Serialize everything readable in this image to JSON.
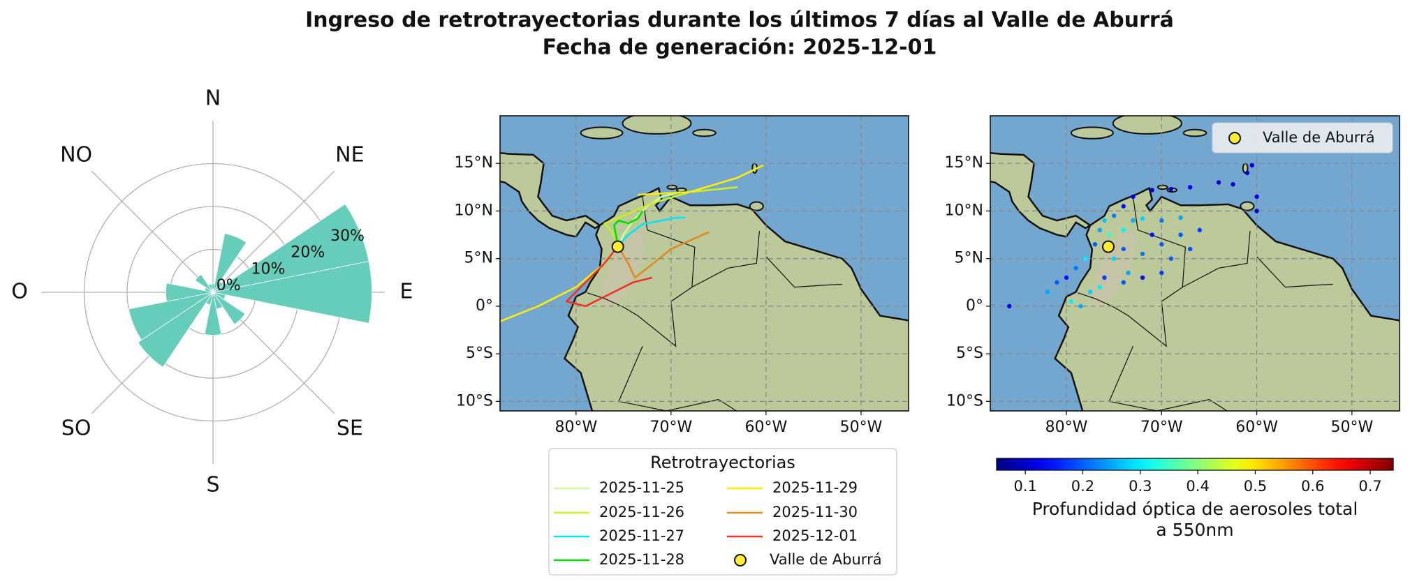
{
  "title": [
    "Ingreso de retrotrayectorias durante los últimos 7 días al Valle de Aburrá",
    "Fecha de generación: 2025-12-01"
  ],
  "chart_data": [
    {
      "type": "polar_bar",
      "color": "#66cdbb",
      "direction_labels": [
        "N",
        "NE",
        "E",
        "SE",
        "S",
        "SO",
        "O",
        "NO"
      ],
      "theta": [
        0,
        22.5,
        45,
        67.5,
        90,
        112.5,
        135,
        157.5,
        180,
        202.5,
        225,
        247.5,
        270,
        292.5,
        315,
        337.5
      ],
      "values": [
        2,
        14,
        3,
        37,
        37,
        3,
        9,
        4,
        10,
        3,
        21,
        20,
        11,
        2,
        5,
        2
      ],
      "rlim": [
        0,
        40
      ],
      "rticks": [
        {
          "value": 0,
          "label": "0%"
        },
        {
          "value": 10,
          "label": "10%"
        },
        {
          "value": 20,
          "label": "20%"
        },
        {
          "value": 30,
          "label": "30%"
        }
      ]
    },
    {
      "type": "trajectory_map",
      "xlim": [
        -88,
        -45
      ],
      "ylim": [
        -11,
        20
      ],
      "xticks": [
        {
          "value": -80,
          "label": "80°W"
        },
        {
          "value": -70,
          "label": "70°W"
        },
        {
          "value": -60,
          "label": "60°W"
        },
        {
          "value": -50,
          "label": "50°W"
        }
      ],
      "yticks": [
        {
          "value": -10,
          "label": "10°S"
        },
        {
          "value": -5,
          "label": "5°S"
        },
        {
          "value": 0,
          "label": "0°"
        },
        {
          "value": 5,
          "label": "5°N"
        },
        {
          "value": 10,
          "label": "10°N"
        },
        {
          "value": 15,
          "label": "15°N"
        }
      ],
      "grid": true,
      "legend_title": "Retrotrayectorias",
      "series": [
        {
          "name": "2025-11-25",
          "color": "#ccff99",
          "x": [
            -75.6,
            -75,
            -74,
            -72.5,
            -71,
            -69
          ],
          "y": [
            6.3,
            7.5,
            9,
            10.5,
            11.5,
            12
          ]
        },
        {
          "name": "2025-11-26",
          "color": "#ccee22",
          "x": [
            -75.6,
            -76,
            -77,
            -75,
            -72,
            -68,
            -65,
            -63
          ],
          "y": [
            6.3,
            7.5,
            8.7,
            9.5,
            10.8,
            12,
            12.3,
            12.5
          ]
        },
        {
          "name": "2025-11-27",
          "color": "#00e5ff",
          "x": [
            -75.6,
            -74.5,
            -73,
            -71,
            -69.5,
            -68.5
          ],
          "y": [
            6.3,
            7.5,
            8.6,
            9,
            9.3,
            9.3
          ]
        },
        {
          "name": "2025-11-28",
          "color": "#00dd00",
          "x": [
            -75.6,
            -75.8,
            -76,
            -75.5,
            -74.5,
            -73.5,
            -73
          ],
          "y": [
            6.3,
            7.5,
            8.5,
            9,
            8.7,
            9.2,
            10
          ]
        },
        {
          "name": "2025-11-29",
          "color": "#ffee00",
          "x": [
            -75.6,
            -77,
            -80,
            -84,
            -88,
            null,
            -73.5,
            -68,
            -63,
            -60.3
          ],
          "y": [
            6.3,
            4.5,
            2,
            0,
            -1.6,
            null,
            11.7,
            12,
            13.5,
            14.8
          ]
        },
        {
          "name": "2025-11-30",
          "color": "#e08a1e",
          "x": [
            -75.6,
            -74.5,
            -73.8,
            -72.5,
            -70,
            -66
          ],
          "y": [
            6.3,
            4.5,
            3,
            4,
            6,
            7.8
          ]
        },
        {
          "name": "2025-12-01",
          "color": "#ee3322",
          "x": [
            -75.6,
            -77,
            -79,
            -80.5,
            -81,
            -79,
            -77,
            -74,
            -72
          ],
          "y": [
            6.3,
            4.5,
            2.5,
            1,
            0.5,
            0,
            1,
            2.5,
            3
          ]
        }
      ],
      "point": {
        "name": "Valle de Aburrá",
        "x": -75.6,
        "y": 6.25,
        "color": "#ffee33"
      }
    },
    {
      "type": "aerosol_map",
      "xlim": [
        -88,
        -45
      ],
      "ylim": [
        -11,
        20
      ],
      "xticks": [
        {
          "value": -80,
          "label": "80°W"
        },
        {
          "value": -70,
          "label": "70°W"
        },
        {
          "value": -60,
          "label": "60°W"
        },
        {
          "value": -50,
          "label": "50°W"
        }
      ],
      "yticks": [
        {
          "value": -10,
          "label": "10°S"
        },
        {
          "value": -5,
          "label": "5°S"
        },
        {
          "value": 0,
          "label": "0°"
        },
        {
          "value": 5,
          "label": "5°N"
        },
        {
          "value": 10,
          "label": "10°N"
        },
        {
          "value": 15,
          "label": "15°N"
        }
      ],
      "grid": true,
      "x": [
        -86,
        -82,
        -81,
        -80,
        -79,
        -78,
        -77.5,
        -79.5,
        -76,
        -77,
        -76.5,
        -76,
        -75,
        -74,
        -73,
        -71,
        -69,
        -67,
        -64,
        -61,
        -60.5,
        -62.5,
        -74,
        -73,
        -72,
        -70,
        -68,
        -74,
        -72,
        -70,
        -68,
        -66,
        -73.5,
        -74,
        -72,
        -70,
        -75.5,
        -76.5,
        -78.5,
        -75,
        -71,
        -69,
        -67,
        -60,
        -60
      ],
      "y": [
        0,
        1.5,
        2.5,
        3,
        4,
        5,
        1.5,
        0.5,
        3,
        6.5,
        8,
        9,
        9.5,
        10.5,
        11.5,
        12.2,
        12.3,
        12.5,
        13,
        14,
        14.8,
        12.8,
        8,
        9,
        9.2,
        9,
        9.3,
        6,
        5.5,
        6.5,
        7.5,
        8,
        3.5,
        2.5,
        3,
        3.5,
        7.5,
        2,
        0,
        5,
        7.5,
        5,
        6,
        11.5,
        10
      ],
      "c": [
        0.12,
        0.25,
        0.2,
        0.15,
        0.22,
        0.3,
        0.28,
        0.3,
        0.18,
        0.2,
        0.25,
        0.27,
        0.22,
        0.15,
        0.12,
        0.1,
        0.11,
        0.12,
        0.1,
        0.1,
        0.12,
        0.1,
        0.3,
        0.25,
        0.28,
        0.22,
        0.25,
        0.2,
        0.22,
        0.2,
        0.2,
        0.18,
        0.25,
        0.2,
        0.15,
        0.18,
        0.35,
        0.3,
        0.25,
        0.28,
        0.15,
        0.2,
        0.19,
        0.12,
        0.1
      ],
      "colormap": "jet",
      "clim": [
        0.05,
        0.74
      ],
      "cticks": [
        0.1,
        0.2,
        0.3,
        0.4,
        0.5,
        0.6,
        0.7
      ],
      "colorbar_label": [
        "Profundidad óptica de aerosoles total",
        "a 550nm"
      ],
      "point": {
        "name": "Valle de Aburrá",
        "x": -75.6,
        "y": 6.25,
        "color": "#ffee33"
      }
    }
  ]
}
